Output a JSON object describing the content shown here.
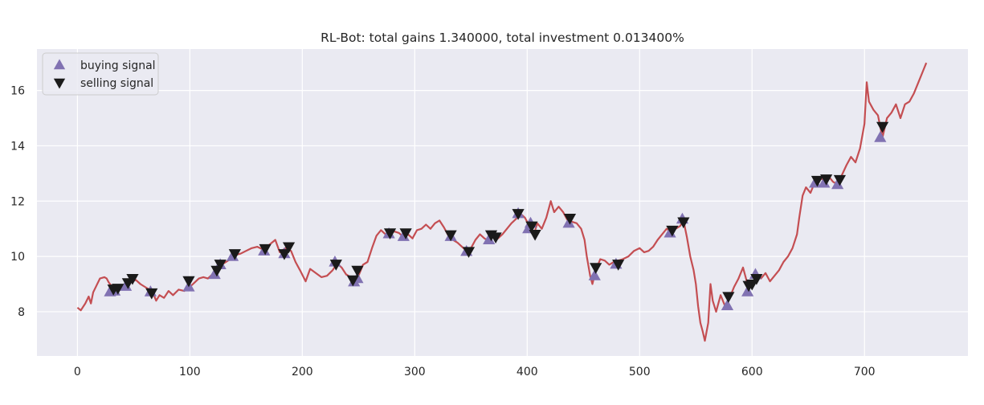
{
  "chart_data": {
    "type": "line",
    "title": "RL-Bot: total gains 1.340000, total investment 0.013400%",
    "xlabel": "",
    "ylabel": "",
    "xlim": [
      -36,
      792
    ],
    "ylim": [
      6.4,
      17.5
    ],
    "x_ticks": [
      0,
      100,
      200,
      300,
      400,
      500,
      600,
      700
    ],
    "y_ticks": [
      8,
      10,
      12,
      14,
      16
    ],
    "grid": true,
    "legend_position": "top-left",
    "colors": {
      "background": "#eaeaf2",
      "grid": "#ffffff",
      "line": "#c44e52",
      "buy_marker": "#8172b2",
      "sell_marker": "#1a1a1a",
      "text": "#262626"
    },
    "series": [
      {
        "key": "close",
        "style": "line",
        "points": [
          [
            0,
            8.15
          ],
          [
            3,
            8.05
          ],
          [
            7,
            8.3
          ],
          [
            10,
            8.55
          ],
          [
            12,
            8.3
          ],
          [
            14,
            8.7
          ],
          [
            17,
            8.95
          ],
          [
            20,
            9.2
          ],
          [
            24,
            9.25
          ],
          [
            26,
            9.2
          ],
          [
            28,
            9.05
          ],
          [
            30,
            8.95
          ],
          [
            33,
            8.8
          ],
          [
            36,
            8.75
          ],
          [
            40,
            8.9
          ],
          [
            44,
            8.95
          ],
          [
            48,
            9.1
          ],
          [
            52,
            9.15
          ],
          [
            56,
            9.0
          ],
          [
            60,
            8.9
          ],
          [
            64,
            8.8
          ],
          [
            67,
            8.7
          ],
          [
            70,
            8.4
          ],
          [
            73,
            8.6
          ],
          [
            77,
            8.5
          ],
          [
            81,
            8.75
          ],
          [
            85,
            8.6
          ],
          [
            90,
            8.8
          ],
          [
            95,
            8.75
          ],
          [
            100,
            8.9
          ],
          [
            104,
            9.05
          ],
          [
            108,
            9.2
          ],
          [
            112,
            9.25
          ],
          [
            116,
            9.2
          ],
          [
            120,
            9.35
          ],
          [
            124,
            9.6
          ],
          [
            128,
            9.7
          ],
          [
            132,
            9.8
          ],
          [
            136,
            9.9
          ],
          [
            140,
            10.05
          ],
          [
            145,
            10.1
          ],
          [
            150,
            10.2
          ],
          [
            155,
            10.3
          ],
          [
            160,
            10.35
          ],
          [
            165,
            10.25
          ],
          [
            170,
            10.4
          ],
          [
            176,
            10.6
          ],
          [
            180,
            10.15
          ],
          [
            185,
            10.3
          ],
          [
            190,
            10.2
          ],
          [
            194,
            9.8
          ],
          [
            198,
            9.5
          ],
          [
            203,
            9.1
          ],
          [
            207,
            9.55
          ],
          [
            212,
            9.4
          ],
          [
            217,
            9.25
          ],
          [
            222,
            9.3
          ],
          [
            227,
            9.5
          ],
          [
            231,
            9.75
          ],
          [
            235,
            9.6
          ],
          [
            239,
            9.35
          ],
          [
            243,
            9.25
          ],
          [
            246,
            9.05
          ],
          [
            250,
            9.3
          ],
          [
            254,
            9.7
          ],
          [
            258,
            9.8
          ],
          [
            262,
            10.3
          ],
          [
            266,
            10.75
          ],
          [
            270,
            10.95
          ],
          [
            274,
            10.8
          ],
          [
            278,
            10.85
          ],
          [
            282,
            10.9
          ],
          [
            286,
            10.85
          ],
          [
            290,
            10.7
          ],
          [
            294,
            10.8
          ],
          [
            298,
            10.65
          ],
          [
            302,
            10.95
          ],
          [
            306,
            11.0
          ],
          [
            310,
            11.15
          ],
          [
            314,
            11.0
          ],
          [
            318,
            11.2
          ],
          [
            322,
            11.3
          ],
          [
            326,
            11.05
          ],
          [
            330,
            10.75
          ],
          [
            334,
            10.6
          ],
          [
            338,
            10.5
          ],
          [
            342,
            10.35
          ],
          [
            346,
            10.2
          ],
          [
            350,
            10.3
          ],
          [
            354,
            10.6
          ],
          [
            358,
            10.8
          ],
          [
            362,
            10.65
          ],
          [
            366,
            10.55
          ],
          [
            370,
            10.75
          ],
          [
            374,
            10.65
          ],
          [
            378,
            10.8
          ],
          [
            382,
            11.0
          ],
          [
            386,
            11.2
          ],
          [
            390,
            11.35
          ],
          [
            394,
            11.55
          ],
          [
            398,
            11.4
          ],
          [
            402,
            11.1
          ],
          [
            406,
            10.8
          ],
          [
            409,
            11.2
          ],
          [
            413,
            11.0
          ],
          [
            417,
            11.4
          ],
          [
            421,
            12.0
          ],
          [
            424,
            11.6
          ],
          [
            428,
            11.8
          ],
          [
            432,
            11.6
          ],
          [
            436,
            11.3
          ],
          [
            440,
            11.25
          ],
          [
            444,
            11.2
          ],
          [
            448,
            11.0
          ],
          [
            451,
            10.6
          ],
          [
            453,
            10.0
          ],
          [
            456,
            9.3
          ],
          [
            458,
            9.0
          ],
          [
            461,
            9.5
          ],
          [
            465,
            9.9
          ],
          [
            469,
            9.85
          ],
          [
            473,
            9.7
          ],
          [
            477,
            9.8
          ],
          [
            481,
            9.85
          ],
          [
            485,
            9.9
          ],
          [
            490,
            10.0
          ],
          [
            495,
            10.2
          ],
          [
            500,
            10.3
          ],
          [
            504,
            10.15
          ],
          [
            508,
            10.2
          ],
          [
            512,
            10.35
          ],
          [
            516,
            10.6
          ],
          [
            520,
            10.8
          ],
          [
            524,
            11.0
          ],
          [
            528,
            10.9
          ],
          [
            532,
            11.0
          ],
          [
            536,
            11.1
          ],
          [
            539,
            11.3
          ],
          [
            542,
            10.7
          ],
          [
            545,
            10.0
          ],
          [
            548,
            9.5
          ],
          [
            550,
            9.0
          ],
          [
            552,
            8.2
          ],
          [
            554,
            7.6
          ],
          [
            556,
            7.3
          ],
          [
            558,
            6.95
          ],
          [
            561,
            7.6
          ],
          [
            563,
            9.0
          ],
          [
            565,
            8.4
          ],
          [
            568,
            8.0
          ],
          [
            572,
            8.6
          ],
          [
            576,
            8.2
          ],
          [
            580,
            8.5
          ],
          [
            584,
            8.9
          ],
          [
            588,
            9.2
          ],
          [
            592,
            9.6
          ],
          [
            596,
            9.0
          ],
          [
            600,
            8.9
          ],
          [
            604,
            9.3
          ],
          [
            608,
            9.2
          ],
          [
            612,
            9.4
          ],
          [
            616,
            9.1
          ],
          [
            620,
            9.3
          ],
          [
            624,
            9.5
          ],
          [
            628,
            9.8
          ],
          [
            632,
            10.0
          ],
          [
            636,
            10.3
          ],
          [
            640,
            10.8
          ],
          [
            642,
            11.4
          ],
          [
            645,
            12.2
          ],
          [
            648,
            12.5
          ],
          [
            652,
            12.3
          ],
          [
            656,
            12.7
          ],
          [
            660,
            12.85
          ],
          [
            664,
            12.75
          ],
          [
            668,
            12.9
          ],
          [
            672,
            12.7
          ],
          [
            676,
            12.6
          ],
          [
            680,
            12.95
          ],
          [
            684,
            13.3
          ],
          [
            688,
            13.6
          ],
          [
            692,
            13.4
          ],
          [
            696,
            13.9
          ],
          [
            700,
            14.8
          ],
          [
            702,
            16.3
          ],
          [
            704,
            15.6
          ],
          [
            708,
            15.3
          ],
          [
            712,
            15.1
          ],
          [
            716,
            14.3
          ],
          [
            720,
            15.0
          ],
          [
            724,
            15.2
          ],
          [
            728,
            15.5
          ],
          [
            732,
            15.0
          ],
          [
            736,
            15.5
          ],
          [
            740,
            15.6
          ],
          [
            744,
            15.9
          ],
          [
            748,
            16.3
          ],
          [
            752,
            16.7
          ],
          [
            755,
            17.0
          ]
        ]
      },
      {
        "name": "buying signal",
        "key": "buy",
        "style": "marker-up",
        "points": [
          [
            29,
            8.72
          ],
          [
            33,
            8.75
          ],
          [
            43,
            8.92
          ],
          [
            65,
            8.72
          ],
          [
            99,
            8.9
          ],
          [
            122,
            9.35
          ],
          [
            127,
            9.7
          ],
          [
            138,
            10.0
          ],
          [
            166,
            10.2
          ],
          [
            184,
            10.1
          ],
          [
            229,
            9.8
          ],
          [
            246,
            9.08
          ],
          [
            249,
            9.2
          ],
          [
            277,
            10.82
          ],
          [
            290,
            10.72
          ],
          [
            332,
            10.72
          ],
          [
            346,
            10.18
          ],
          [
            366,
            10.6
          ],
          [
            392,
            11.55
          ],
          [
            401,
            11.0
          ],
          [
            403,
            11.2
          ],
          [
            437,
            11.2
          ],
          [
            460,
            9.3
          ],
          [
            479,
            9.72
          ],
          [
            527,
            10.85
          ],
          [
            538,
            11.35
          ],
          [
            578,
            8.22
          ],
          [
            596,
            8.72
          ],
          [
            603,
            9.35
          ],
          [
            656,
            12.65
          ],
          [
            664,
            12.65
          ],
          [
            676,
            12.6
          ],
          [
            714,
            14.3
          ]
        ]
      },
      {
        "name": "selling signal",
        "key": "sell",
        "style": "marker-down",
        "points": [
          [
            32,
            8.82
          ],
          [
            36,
            8.85
          ],
          [
            45,
            9.05
          ],
          [
            49,
            9.2
          ],
          [
            66,
            8.68
          ],
          [
            99,
            9.12
          ],
          [
            124,
            9.5
          ],
          [
            127,
            9.72
          ],
          [
            140,
            10.1
          ],
          [
            167,
            10.28
          ],
          [
            184,
            10.1
          ],
          [
            188,
            10.35
          ],
          [
            230,
            9.72
          ],
          [
            245,
            9.15
          ],
          [
            249,
            9.5
          ],
          [
            278,
            10.85
          ],
          [
            292,
            10.85
          ],
          [
            332,
            10.78
          ],
          [
            348,
            10.18
          ],
          [
            368,
            10.78
          ],
          [
            372,
            10.7
          ],
          [
            392,
            11.55
          ],
          [
            404,
            11.1
          ],
          [
            407,
            10.8
          ],
          [
            438,
            11.38
          ],
          [
            461,
            9.6
          ],
          [
            481,
            9.72
          ],
          [
            529,
            10.95
          ],
          [
            539,
            11.25
          ],
          [
            579,
            8.55
          ],
          [
            597,
            8.95
          ],
          [
            600,
            9.0
          ],
          [
            604,
            9.2
          ],
          [
            658,
            12.75
          ],
          [
            666,
            12.8
          ],
          [
            678,
            12.78
          ],
          [
            716,
            14.7
          ]
        ]
      }
    ]
  }
}
